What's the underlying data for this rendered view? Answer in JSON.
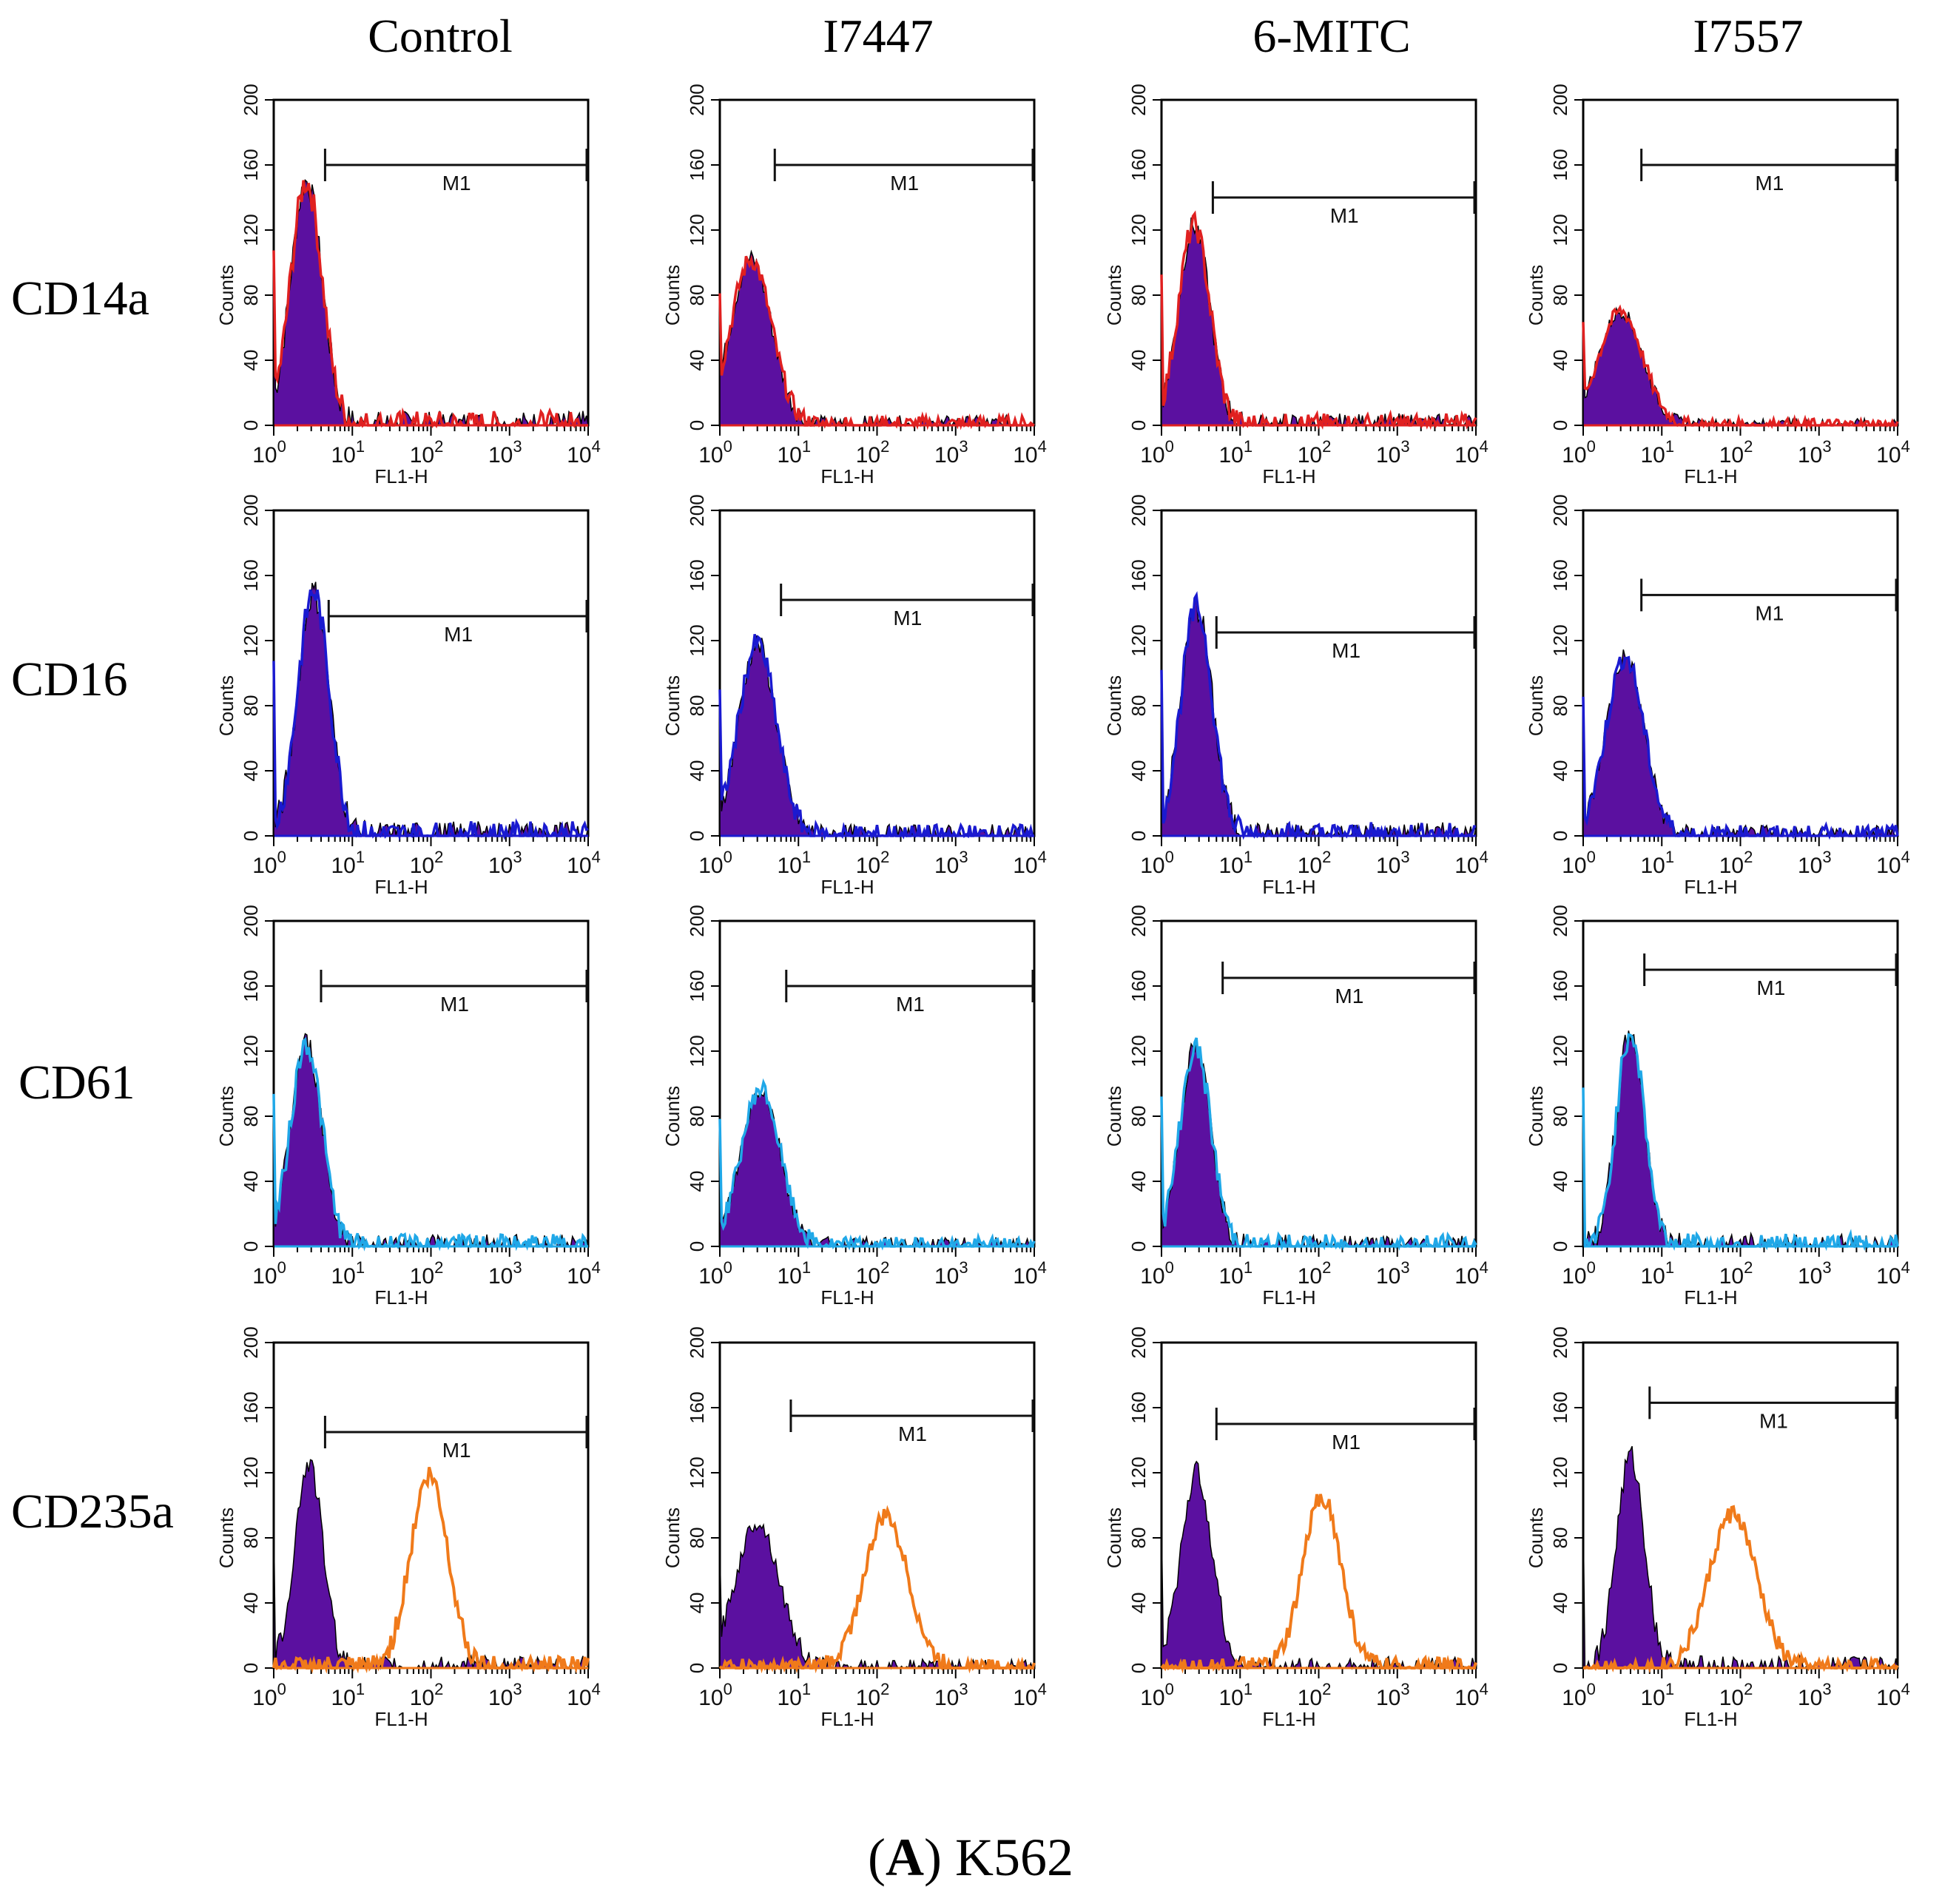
{
  "figure": {
    "caption_letter": "A",
    "caption_rest": ") K562",
    "caption_open": "(",
    "columns": [
      "Control",
      "I7447",
      "6-MITC",
      "I7557"
    ],
    "rows": [
      "CD14a",
      "CD16",
      "CD61",
      "CD235a"
    ]
  },
  "colors": {
    "fill": "#5b10a0",
    "CD14a": "#e02020",
    "CD16": "#1a1ad0",
    "CD61": "#20a8e8",
    "CD235a": "#f07a1a",
    "axis": "#000000"
  },
  "chart_data": {
    "type": "histogram-grid",
    "x_label": "FL1-H",
    "y_label": "Counts",
    "x_scale": "log",
    "x_range": [
      1,
      10000
    ],
    "x_ticks": [
      1,
      10,
      100,
      1000,
      10000
    ],
    "x_tick_labels": [
      [
        "10",
        "0"
      ],
      [
        "10",
        "1"
      ],
      [
        "10",
        "2"
      ],
      [
        "10",
        "3"
      ],
      [
        "10",
        "4"
      ]
    ],
    "y_range": [
      0,
      200
    ],
    "y_ticks": [
      "0",
      "40",
      "80",
      "120",
      "160",
      "200"
    ],
    "marker_label": "M1",
    "panels": [
      {
        "row": "CD14a",
        "col": "Control",
        "gate_start": 4.5,
        "gate_y": 160,
        "isotype_peak": {
          "x": 2.6,
          "y": 150,
          "sd": 0.2
        },
        "stain_peak": {
          "x": 2.6,
          "y": 150,
          "sd": 0.2
        }
      },
      {
        "row": "CD14a",
        "col": "I7447",
        "gate_start": 5.0,
        "gate_y": 160,
        "isotype_peak": {
          "x": 2.5,
          "y": 102,
          "sd": 0.26
        },
        "stain_peak": {
          "x": 2.5,
          "y": 102,
          "sd": 0.26
        }
      },
      {
        "row": "CD14a",
        "col": "6-MITC",
        "gate_start": 4.5,
        "gate_y": 140,
        "isotype_peak": {
          "x": 2.6,
          "y": 123,
          "sd": 0.2
        },
        "stain_peak": {
          "x": 2.6,
          "y": 123,
          "sd": 0.2
        }
      },
      {
        "row": "CD14a",
        "col": "I7557",
        "gate_start": 5.5,
        "gate_y": 160,
        "isotype_peak": {
          "x": 3.0,
          "y": 70,
          "sd": 0.28
        },
        "stain_peak": {
          "x": 3.0,
          "y": 70,
          "sd": 0.28
        }
      },
      {
        "row": "CD16",
        "col": "Control",
        "gate_start": 5.0,
        "gate_y": 135,
        "isotype_peak": {
          "x": 3.2,
          "y": 150,
          "sd": 0.2
        },
        "stain_peak": {
          "x": 3.2,
          "y": 150,
          "sd": 0.2
        }
      },
      {
        "row": "CD16",
        "col": "I7447",
        "gate_start": 6.0,
        "gate_y": 145,
        "isotype_peak": {
          "x": 3.0,
          "y": 118,
          "sd": 0.24
        },
        "stain_peak": {
          "x": 3.0,
          "y": 118,
          "sd": 0.24
        }
      },
      {
        "row": "CD16",
        "col": "6-MITC",
        "gate_start": 5.0,
        "gate_y": 125,
        "isotype_peak": {
          "x": 2.8,
          "y": 140,
          "sd": 0.2
        },
        "stain_peak": {
          "x": 2.8,
          "y": 140,
          "sd": 0.2
        }
      },
      {
        "row": "CD16",
        "col": "I7557",
        "gate_start": 5.5,
        "gate_y": 148,
        "isotype_peak": {
          "x": 3.4,
          "y": 110,
          "sd": 0.24
        },
        "stain_peak": {
          "x": 3.4,
          "y": 110,
          "sd": 0.24
        }
      },
      {
        "row": "CD61",
        "col": "Control",
        "gate_start": 4.0,
        "gate_y": 160,
        "isotype_peak": {
          "x": 2.6,
          "y": 125,
          "sd": 0.2
        },
        "stain_peak": {
          "x": 2.6,
          "y": 125,
          "sd": 0.2
        }
      },
      {
        "row": "CD61",
        "col": "I7447",
        "gate_start": 7.0,
        "gate_y": 160,
        "isotype_peak": {
          "x": 3.3,
          "y": 97,
          "sd": 0.25
        },
        "stain_peak": {
          "x": 3.3,
          "y": 97,
          "sd": 0.25
        }
      },
      {
        "row": "CD61",
        "col": "6-MITC",
        "gate_start": 6.0,
        "gate_y": 165,
        "isotype_peak": {
          "x": 2.7,
          "y": 122,
          "sd": 0.2
        },
        "stain_peak": {
          "x": 2.7,
          "y": 122,
          "sd": 0.2
        }
      },
      {
        "row": "CD61",
        "col": "I7557",
        "gate_start": 6.0,
        "gate_y": 170,
        "isotype_peak": {
          "x": 4.0,
          "y": 132,
          "sd": 0.18
        },
        "stain_peak": {
          "x": 4.0,
          "y": 132,
          "sd": 0.18
        }
      },
      {
        "row": "CD235a",
        "col": "Control",
        "gate_start": 4.5,
        "gate_y": 145,
        "isotype_peak": {
          "x": 2.8,
          "y": 126,
          "sd": 0.18
        },
        "stain_peak": {
          "x": 95,
          "y": 118,
          "sd": 0.24
        }
      },
      {
        "row": "CD235a",
        "col": "I7447",
        "gate_start": 8.0,
        "gate_y": 155,
        "isotype_peak": {
          "x": 3.0,
          "y": 90,
          "sd": 0.28
        },
        "stain_peak": {
          "x": 130,
          "y": 93,
          "sd": 0.28
        }
      },
      {
        "row": "CD235a",
        "col": "6-MITC",
        "gate_start": 5.0,
        "gate_y": 150,
        "isotype_peak": {
          "x": 2.8,
          "y": 120,
          "sd": 0.2
        },
        "stain_peak": {
          "x": 110,
          "y": 106,
          "sd": 0.24
        }
      },
      {
        "row": "CD235a",
        "col": "I7557",
        "gate_start": 7.0,
        "gate_y": 163,
        "isotype_peak": {
          "x": 4.0,
          "y": 130,
          "sd": 0.18
        },
        "stain_peak": {
          "x": 80,
          "y": 95,
          "sd": 0.3
        }
      }
    ]
  }
}
